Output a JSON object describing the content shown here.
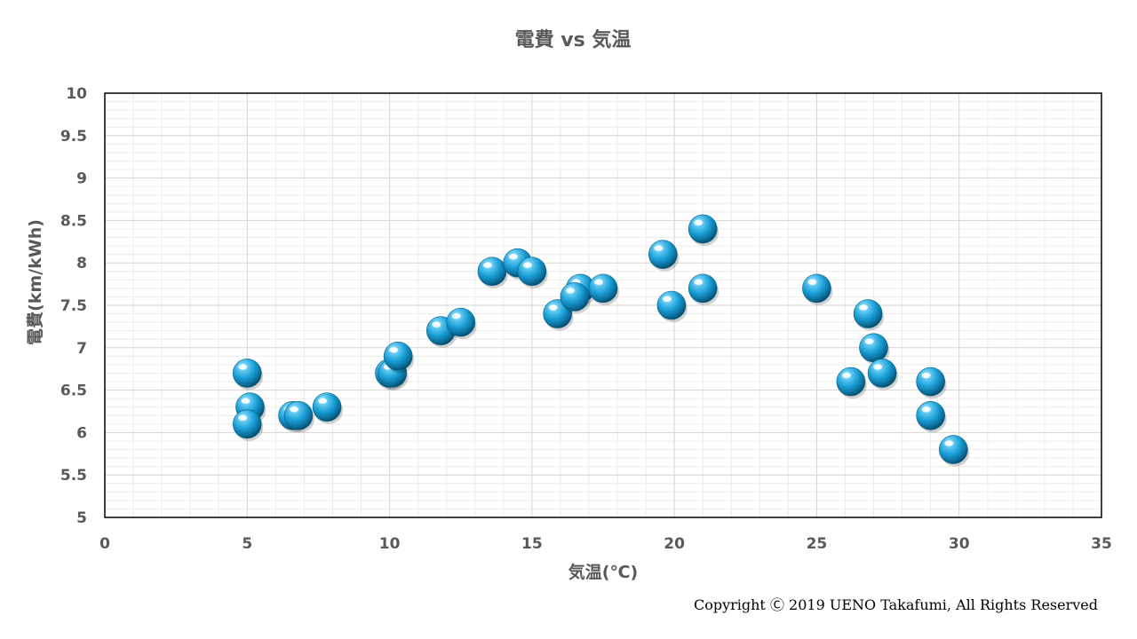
{
  "chart_data": {
    "type": "scatter",
    "title": "電費 vs 気温",
    "xlabel": "気温(℃)",
    "ylabel": "電費(km/kWh)",
    "xlim": [
      0,
      35
    ],
    "ylim": [
      5,
      10
    ],
    "xticks": [
      "0",
      "5",
      "10",
      "15",
      "20",
      "25",
      "30",
      "35"
    ],
    "yticks": [
      "5",
      "5.5",
      "6",
      "6.5",
      "7",
      "7.5",
      "8",
      "8.5",
      "9",
      "9.5",
      "10"
    ],
    "grid": true,
    "marker_color": "#1a9fd6",
    "points": [
      {
        "x": 5.0,
        "y": 6.7
      },
      {
        "x": 5.1,
        "y": 6.3
      },
      {
        "x": 5.0,
        "y": 6.1
      },
      {
        "x": 6.6,
        "y": 6.2
      },
      {
        "x": 6.8,
        "y": 6.2
      },
      {
        "x": 7.8,
        "y": 6.3
      },
      {
        "x": 10.0,
        "y": 6.7
      },
      {
        "x": 10.1,
        "y": 6.7
      },
      {
        "x": 10.3,
        "y": 6.9
      },
      {
        "x": 11.8,
        "y": 7.2
      },
      {
        "x": 12.5,
        "y": 7.3
      },
      {
        "x": 13.6,
        "y": 7.9
      },
      {
        "x": 14.5,
        "y": 8.0
      },
      {
        "x": 15.0,
        "y": 7.9
      },
      {
        "x": 15.9,
        "y": 7.4
      },
      {
        "x": 16.7,
        "y": 7.7
      },
      {
        "x": 16.5,
        "y": 7.6
      },
      {
        "x": 17.5,
        "y": 7.7
      },
      {
        "x": 19.6,
        "y": 8.1
      },
      {
        "x": 19.9,
        "y": 7.5
      },
      {
        "x": 21.0,
        "y": 8.4
      },
      {
        "x": 21.0,
        "y": 7.7
      },
      {
        "x": 25.0,
        "y": 7.7
      },
      {
        "x": 26.2,
        "y": 6.6
      },
      {
        "x": 26.8,
        "y": 7.4
      },
      {
        "x": 27.0,
        "y": 7.0
      },
      {
        "x": 27.3,
        "y": 6.7
      },
      {
        "x": 29.0,
        "y": 6.6
      },
      {
        "x": 29.0,
        "y": 6.2
      },
      {
        "x": 29.8,
        "y": 5.8
      }
    ]
  },
  "footer": {
    "copyright": "Copyright Ⓒ 2019 UENO Takafumi, All Rights Reserved"
  }
}
